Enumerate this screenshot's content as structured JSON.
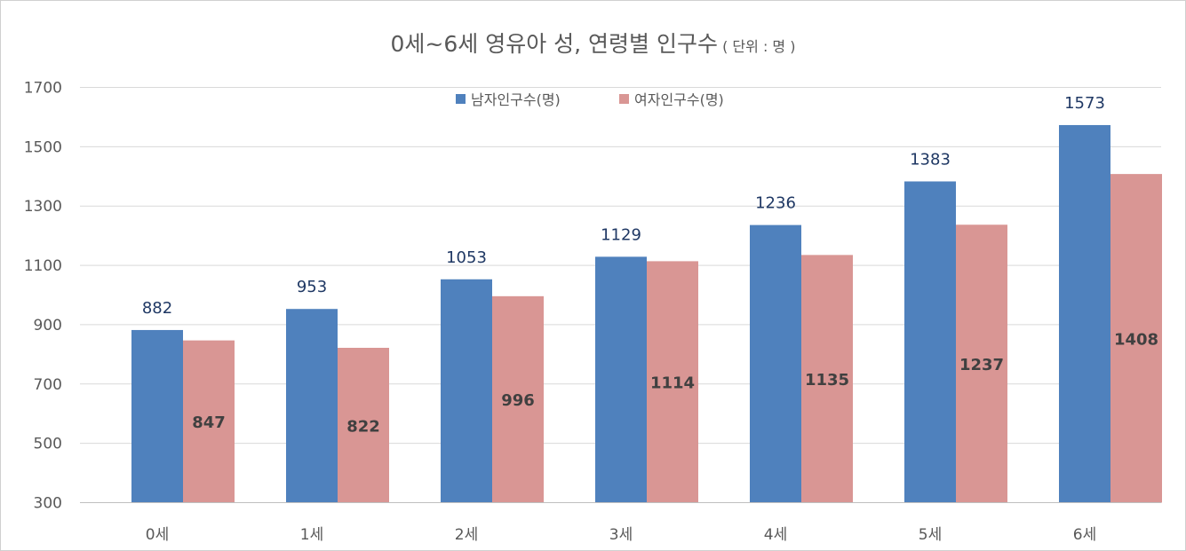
{
  "chart_data": {
    "type": "bar",
    "title": "0세~6세 영유아 성, 연령별 인구수",
    "unit_note": "( 단위 : 명 )",
    "categories": [
      "0세",
      "1세",
      "2세",
      "3세",
      "4세",
      "5세",
      "6세"
    ],
    "series": [
      {
        "name": "남자인구수(명)",
        "values": [
          882,
          953,
          1053,
          1129,
          1236,
          1383,
          1573
        ],
        "color": "#4f81bd",
        "label_color": "#1f3864"
      },
      {
        "name": "여자인구수(명)",
        "values": [
          847,
          822,
          996,
          1114,
          1135,
          1237,
          1408
        ],
        "color": "#d99694",
        "label_color": "#404040"
      }
    ],
    "yticks": [
      300,
      500,
      700,
      900,
      1100,
      1300,
      1500,
      1700
    ],
    "ylim": [
      300,
      1700
    ],
    "grid": true,
    "legend": "top"
  }
}
